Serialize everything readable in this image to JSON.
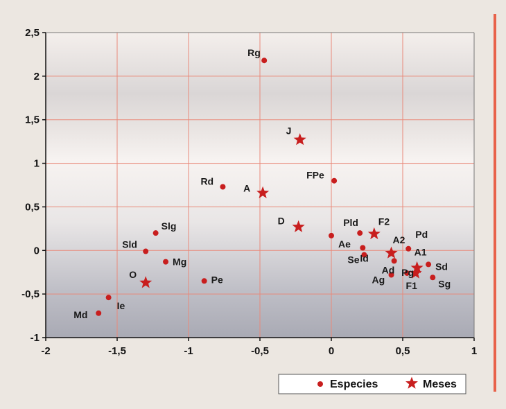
{
  "chart_data": {
    "type": "scatter",
    "title": "",
    "xlabel": "",
    "ylabel": "",
    "xlim": [
      -2,
      1
    ],
    "ylim": [
      -1,
      2.5
    ],
    "x_ticks": [
      "-2",
      "-1,5",
      "-1",
      "-0,5",
      "0",
      "0,5",
      "1"
    ],
    "y_ticks": [
      "-1",
      "-0,5",
      "0",
      "0,5",
      "1",
      "1,5",
      "2",
      "2,5"
    ],
    "grid": true,
    "legend_position": "bottom-right",
    "series": [
      {
        "name": "Especies",
        "marker": "circle",
        "color": "#c81e1e",
        "points": [
          {
            "label": "Rg",
            "x": -0.47,
            "y": 2.18
          },
          {
            "label": "Rd",
            "x": -0.76,
            "y": 0.73
          },
          {
            "label": "FPe",
            "x": 0.02,
            "y": 0.8
          },
          {
            "label": "Slg",
            "x": -1.23,
            "y": 0.2
          },
          {
            "label": "Sld",
            "x": -1.3,
            "y": -0.01
          },
          {
            "label": "Mg",
            "x": -1.16,
            "y": -0.13
          },
          {
            "label": "Pe",
            "x": -0.89,
            "y": -0.35
          },
          {
            "label": "Ie",
            "x": -1.56,
            "y": -0.54
          },
          {
            "label": "Md",
            "x": -1.63,
            "y": -0.72
          },
          {
            "label": "Ae",
            "x": 0.0,
            "y": 0.17
          },
          {
            "label": "Pld",
            "x": 0.2,
            "y": 0.2
          },
          {
            "label": "Id",
            "x": 0.22,
            "y": 0.03
          },
          {
            "label": "Se",
            "x": 0.23,
            "y": -0.05
          },
          {
            "label": "Pd",
            "x": 0.54,
            "y": 0.02
          },
          {
            "label": "Ad",
            "x": 0.44,
            "y": -0.12
          },
          {
            "label": "Sd",
            "x": 0.68,
            "y": -0.16
          },
          {
            "label": "Pg",
            "x": 0.53,
            "y": -0.26
          },
          {
            "label": "Ag",
            "x": 0.42,
            "y": -0.28
          },
          {
            "label": "Sg",
            "x": 0.71,
            "y": -0.31
          }
        ]
      },
      {
        "name": "Meses",
        "marker": "star",
        "color": "#c81e1e",
        "points": [
          {
            "label": "J",
            "x": -0.22,
            "y": 1.27
          },
          {
            "label": "A",
            "x": -0.48,
            "y": 0.66
          },
          {
            "label": "D",
            "x": -0.23,
            "y": 0.27
          },
          {
            "label": "F2",
            "x": 0.3,
            "y": 0.19
          },
          {
            "label": "A2",
            "x": 0.42,
            "y": -0.03
          },
          {
            "label": "A1",
            "x": 0.6,
            "y": -0.2
          },
          {
            "label": "F1",
            "x": 0.59,
            "y": -0.26
          },
          {
            "label": "O",
            "x": -1.3,
            "y": -0.37
          }
        ]
      }
    ]
  }
}
